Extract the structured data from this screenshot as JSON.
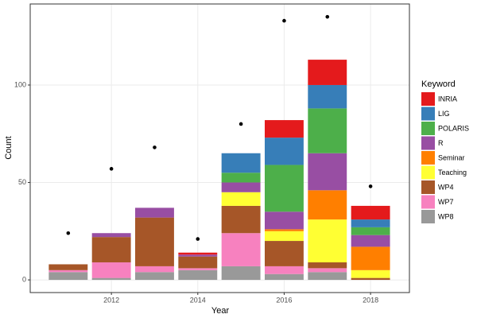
{
  "chart_data": {
    "type": "stacked-bar",
    "x_label": "Year",
    "y_label": "Count",
    "x": [
      2011,
      2012,
      2013,
      2014,
      2015,
      2016,
      2017,
      2018
    ],
    "xlim": [
      2010.12,
      2018.9
    ],
    "xticks": [
      2012,
      2014,
      2016,
      2018
    ],
    "ylim": [
      -6.5,
      141.6
    ],
    "yticks": [
      0,
      50,
      100
    ],
    "grid": true,
    "legend": "right",
    "legend_title": "Keyword",
    "series": [
      {
        "name": "INRIA",
        "color": "#e41a1c",
        "values": [
          0,
          0,
          0,
          1,
          0,
          9,
          13,
          7
        ]
      },
      {
        "name": "LIG",
        "color": "#377eb8",
        "values": [
          0,
          0,
          0,
          0,
          10,
          14,
          12,
          4
        ]
      },
      {
        "name": "POLARIS",
        "color": "#4daf4a",
        "values": [
          0,
          0,
          0,
          0,
          5,
          24,
          23,
          4
        ]
      },
      {
        "name": "R",
        "color": "#984ea3",
        "values": [
          0,
          2,
          5,
          1,
          5,
          9,
          19,
          6
        ]
      },
      {
        "name": "Seminar",
        "color": "#ff7f00",
        "values": [
          0,
          0,
          0,
          0,
          0,
          1,
          15,
          12
        ]
      },
      {
        "name": "Teaching",
        "color": "#ffff33",
        "values": [
          0,
          0,
          0,
          0,
          7,
          5,
          22,
          4
        ]
      },
      {
        "name": "WP4",
        "color": "#a65628",
        "values": [
          3,
          13,
          25,
          6,
          14,
          13,
          3,
          1
        ]
      },
      {
        "name": "WP7",
        "color": "#f781bf",
        "values": [
          1,
          8,
          3,
          1,
          17,
          4,
          2,
          0
        ]
      },
      {
        "name": "WP8",
        "color": "#999999",
        "values": [
          4,
          1,
          4,
          5,
          7,
          3,
          4,
          0
        ]
      }
    ],
    "dots": {
      "color": "#000000",
      "values": [
        24,
        57,
        68,
        21,
        80,
        133,
        135,
        48
      ]
    }
  }
}
